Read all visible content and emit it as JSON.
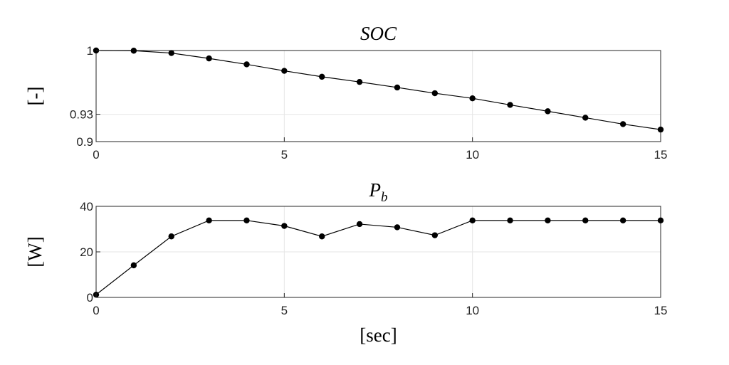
{
  "chart_data": [
    {
      "type": "line",
      "title": "SOC",
      "ylabel": "[-]",
      "xlabel": "",
      "xlim": [
        0,
        15
      ],
      "ylim": [
        0.9,
        1.0
      ],
      "xticks": [
        0,
        5,
        10,
        15
      ],
      "xtick_labels": [
        "0",
        "5",
        "10",
        "15"
      ],
      "yticks": [
        0.9,
        0.93,
        1.0
      ],
      "ytick_labels": [
        "0.9",
        "0.93",
        "1"
      ],
      "grid": true,
      "series": [
        {
          "name": "SOC",
          "x": [
            0,
            1,
            2,
            3,
            4,
            5,
            6,
            7,
            8,
            9,
            10,
            11,
            12,
            13,
            14,
            15
          ],
          "values": [
            1.0,
            0.9998,
            0.9972,
            0.9913,
            0.9848,
            0.9777,
            0.9712,
            0.9655,
            0.9594,
            0.9531,
            0.9475,
            0.9403,
            0.9333,
            0.9262,
            0.9192,
            0.9132
          ]
        }
      ]
    },
    {
      "type": "line",
      "title": "P",
      "title_subscript": "b",
      "ylabel": "[W]",
      "xlabel": "[sec]",
      "xlim": [
        0,
        15
      ],
      "ylim": [
        0,
        40
      ],
      "xticks": [
        0,
        5,
        10,
        15
      ],
      "xtick_labels": [
        "0",
        "5",
        "10",
        "15"
      ],
      "yticks": [
        0,
        20,
        40
      ],
      "ytick_labels": [
        "0",
        "20",
        "40"
      ],
      "grid": true,
      "series": [
        {
          "name": "Pb",
          "x": [
            0,
            1,
            2,
            3,
            4,
            5,
            6,
            7,
            8,
            9,
            10,
            11,
            12,
            13,
            14,
            15
          ],
          "values": [
            1.2,
            14.1,
            26.8,
            33.8,
            33.8,
            31.4,
            26.8,
            32.2,
            30.8,
            27.3,
            33.8,
            33.8,
            33.8,
            33.8,
            33.8,
            33.8
          ]
        }
      ]
    }
  ]
}
